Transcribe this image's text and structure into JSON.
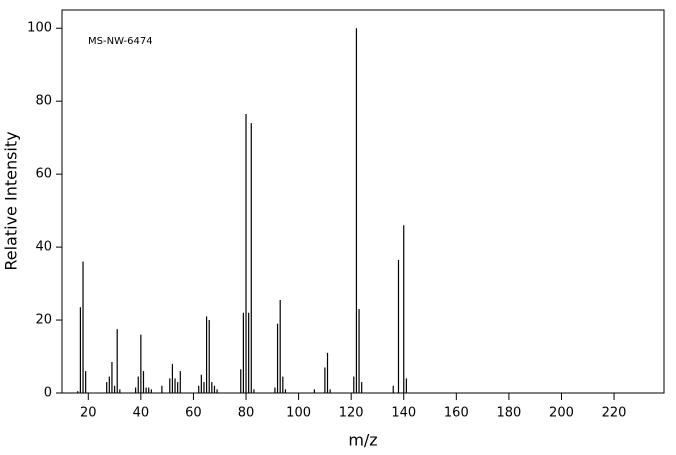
{
  "chart_data": {
    "type": "bar",
    "annotation": "MS-NW-6474",
    "xlabel": "m/z",
    "ylabel": "Relative Intensity",
    "x": [
      16,
      17,
      18,
      19,
      27,
      28,
      29,
      30,
      31,
      32,
      38,
      39,
      40,
      41,
      42,
      43,
      44,
      48,
      51,
      52,
      53,
      54,
      55,
      62,
      63,
      64,
      65,
      66,
      67,
      68,
      69,
      78,
      79,
      80,
      81,
      82,
      83,
      91,
      92,
      93,
      94,
      95,
      106,
      110,
      111,
      112,
      121,
      122,
      123,
      124,
      136,
      138,
      140,
      141
    ],
    "values": [
      0.5,
      23.5,
      36,
      6,
      3,
      4.5,
      8.5,
      2,
      17.5,
      1,
      1.5,
      4.5,
      16,
      6,
      1.5,
      1.5,
      1,
      2,
      4,
      8,
      4,
      3,
      6,
      2,
      5,
      3,
      21,
      20,
      3,
      2,
      1,
      6.5,
      22,
      76.5,
      22,
      74,
      1,
      1.5,
      19,
      25.5,
      4.5,
      1,
      1,
      7,
      11,
      1,
      4.5,
      100,
      23,
      3,
      2,
      36.5,
      46,
      4
    ],
    "color": "#000000",
    "xlim": [
      10,
      239
    ],
    "xticks": [
      20,
      40,
      60,
      80,
      100,
      120,
      140,
      160,
      180,
      200,
      220
    ],
    "ylim": [
      0,
      105
    ],
    "yticks": [
      0,
      20,
      40,
      60,
      80,
      100
    ]
  }
}
